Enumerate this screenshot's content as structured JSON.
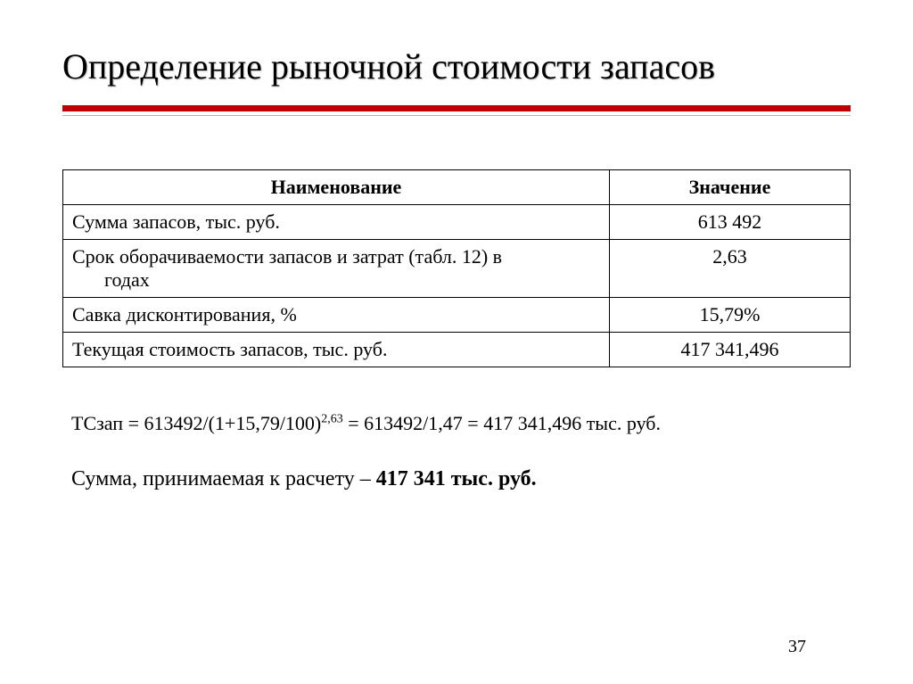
{
  "title": "Определение рыночной стоимости запасов",
  "table": {
    "header_name": "Наименование",
    "header_value": "Значение",
    "rows": [
      {
        "name": "Сумма запасов, тыс. руб.",
        "name_extra": "",
        "value": "613 492"
      },
      {
        "name": "Срок  оборачиваемости    запасов  и  затрат  (табл.  12)  в",
        "name_extra": "годах",
        "value": "2,63"
      },
      {
        "name": "Савка дисконтирования, %",
        "name_extra": "",
        "value": "15,79%"
      },
      {
        "name": "Текущая стоимость запасов, тыс. руб.",
        "name_extra": "",
        "value": "417 341,496"
      }
    ]
  },
  "formula": {
    "lhs": "ТСзап",
    "eq1": " = 613492/(1+15,79/100)",
    "exp": "2,63",
    "eq2": " = 613492/1,47 = 417 341,496 тыс. руб."
  },
  "summary_prefix": "Сумма, принимаемая к расчету – ",
  "summary_bold": "417 341 тыс. руб.",
  "page_number": "37",
  "colors": {
    "rule_red": "#c00000",
    "rule_gray": "#b0b0b0",
    "text": "#000000",
    "background": "#ffffff"
  }
}
